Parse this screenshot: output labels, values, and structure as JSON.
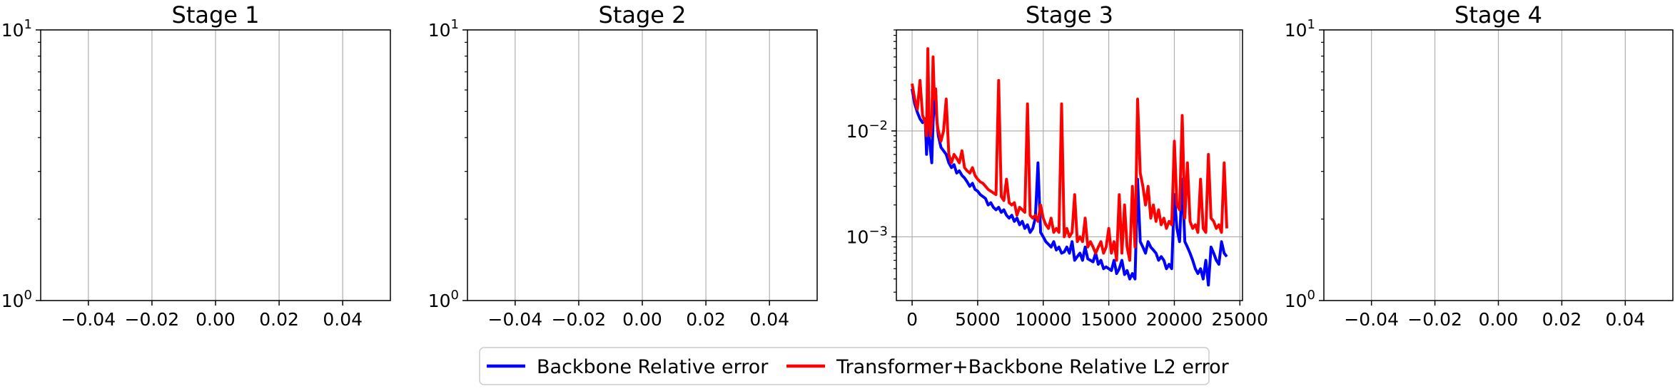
{
  "chart_data": [
    {
      "type": "line",
      "title": "Stage 1",
      "yscale": "log",
      "ylim": [
        1,
        10
      ],
      "xlim": [
        -0.055,
        0.055
      ],
      "xticks": [
        -0.04,
        -0.02,
        0.0,
        0.02,
        0.04
      ],
      "xtick_labels": [
        "−0.04",
        "−0.02",
        "0.00",
        "0.02",
        "0.04"
      ],
      "ytick_labels": [
        {
          "base": "10",
          "exp": "0",
          "value": 1
        },
        {
          "base": "10",
          "exp": "1",
          "value": 10
        }
      ],
      "grid": true,
      "series": []
    },
    {
      "type": "line",
      "title": "Stage 2",
      "yscale": "log",
      "ylim": [
        1,
        10
      ],
      "xlim": [
        -0.055,
        0.055
      ],
      "xticks": [
        -0.04,
        -0.02,
        0.0,
        0.02,
        0.04
      ],
      "xtick_labels": [
        "−0.04",
        "−0.02",
        "0.00",
        "0.02",
        "0.04"
      ],
      "ytick_labels": [
        {
          "base": "10",
          "exp": "0",
          "value": 1
        },
        {
          "base": "10",
          "exp": "1",
          "value": 10
        }
      ],
      "grid": true,
      "series": []
    },
    {
      "type": "line",
      "title": "Stage 3",
      "yscale": "log",
      "ylim": [
        0.00025,
        0.09
      ],
      "xlim": [
        -1200,
        25200
      ],
      "xticks": [
        0,
        5000,
        10000,
        15000,
        20000,
        25000
      ],
      "xtick_labels": [
        "0",
        "5000",
        "10000",
        "15000",
        "20000",
        "25000"
      ],
      "ytick_labels": [
        {
          "base": "10",
          "exp": "−3",
          "value": 0.001
        },
        {
          "base": "10",
          "exp": "−2",
          "value": 0.01
        }
      ],
      "grid": true,
      "series": [
        {
          "name": "Backbone Relative error",
          "color": "#0000ff",
          "x": [
            0,
            200,
            400,
            600,
            800,
            1000,
            1100,
            1200,
            1300,
            1400,
            1500,
            1600,
            1700,
            1800,
            1900,
            2000,
            2200,
            2400,
            2600,
            2800,
            3000,
            3200,
            3400,
            3600,
            3800,
            4000,
            4200,
            4400,
            4600,
            4800,
            5000,
            5200,
            5400,
            5600,
            5800,
            6000,
            6200,
            6400,
            6600,
            6800,
            7000,
            7200,
            7400,
            7600,
            7800,
            8000,
            8200,
            8400,
            8600,
            8800,
            9000,
            9200,
            9400,
            9600,
            9800,
            10000,
            10200,
            10400,
            10600,
            10800,
            11000,
            11200,
            11400,
            11600,
            11800,
            12000,
            12200,
            12400,
            12600,
            12800,
            13000,
            13200,
            13400,
            13600,
            13800,
            14000,
            14200,
            14400,
            14600,
            14800,
            15000,
            15200,
            15400,
            15600,
            15800,
            16000,
            16200,
            16400,
            16600,
            16800,
            17000,
            17200,
            17400,
            17600,
            17800,
            18000,
            18200,
            18400,
            18600,
            18800,
            19000,
            19200,
            19400,
            19600,
            19800,
            20000,
            20200,
            20400,
            20600,
            20800,
            21000,
            21200,
            21400,
            21600,
            21800,
            22000,
            22200,
            22400,
            22600,
            22800,
            23000,
            23200,
            23400,
            23600,
            23800,
            24000
          ],
          "y": [
            0.025,
            0.018,
            0.015,
            0.013,
            0.012,
            0.013,
            0.006,
            0.012,
            0.009,
            0.0065,
            0.005,
            0.012,
            0.02,
            0.018,
            0.012,
            0.009,
            0.007,
            0.0065,
            0.006,
            0.005,
            0.0045,
            0.0048,
            0.004,
            0.0042,
            0.0038,
            0.0036,
            0.0033,
            0.003,
            0.0032,
            0.0028,
            0.0027,
            0.0025,
            0.0024,
            0.0023,
            0.002,
            0.0021,
            0.0019,
            0.0018,
            0.0019,
            0.0017,
            0.0018,
            0.0016,
            0.0015,
            0.0016,
            0.0014,
            0.0015,
            0.0013,
            0.0014,
            0.0012,
            0.0013,
            0.0011,
            0.0012,
            0.0015,
            0.005,
            0.0011,
            0.001,
            0.0009,
            0.00085,
            0.0008,
            0.0009,
            0.00075,
            0.0008,
            0.0007,
            0.00072,
            0.0008,
            0.0007,
            0.0009,
            0.0006,
            0.00065,
            0.0007,
            0.0006,
            0.0008,
            0.00062,
            0.0006,
            0.00058,
            0.0007,
            0.00055,
            0.0006,
            0.0005,
            0.00052,
            0.0005,
            0.00048,
            0.0006,
            0.00045,
            0.0005,
            0.0006,
            0.00044,
            0.00048,
            0.0004,
            0.00045,
            0.0004,
            0.0035,
            0.0009,
            0.0008,
            0.0007,
            0.0009,
            0.0008,
            0.00075,
            0.0007,
            0.0006,
            0.00065,
            0.0006,
            0.0005,
            0.00055,
            0.0005,
            0.0025,
            0.0012,
            0.0009,
            0.0035,
            0.0009,
            0.0008,
            0.0007,
            0.0006,
            0.0005,
            0.00045,
            0.0005,
            0.0004,
            0.0006,
            0.00035,
            0.0008,
            0.0007,
            0.0006,
            0.00055,
            0.0009,
            0.0007,
            0.00065
          ]
        },
        {
          "name": "Transformer+Backbone Relative L2 error",
          "color": "#ff0000",
          "x": [
            0,
            200,
            400,
            600,
            800,
            1000,
            1100,
            1200,
            1300,
            1400,
            1500,
            1600,
            1700,
            1800,
            1900,
            2000,
            2200,
            2400,
            2600,
            2800,
            3000,
            3200,
            3400,
            3600,
            3800,
            4000,
            4200,
            4400,
            4600,
            4800,
            5000,
            5200,
            5400,
            5600,
            5800,
            6000,
            6200,
            6400,
            6600,
            6800,
            7000,
            7200,
            7400,
            7600,
            7800,
            8000,
            8200,
            8400,
            8600,
            8800,
            9000,
            9200,
            9400,
            9600,
            9800,
            10000,
            10200,
            10400,
            10600,
            10800,
            11000,
            11200,
            11400,
            11600,
            11800,
            12000,
            12200,
            12400,
            12600,
            12800,
            13000,
            13200,
            13400,
            13600,
            13800,
            14000,
            14200,
            14400,
            14600,
            14800,
            15000,
            15200,
            15400,
            15600,
            15800,
            16000,
            16200,
            16400,
            16600,
            16800,
            17000,
            17200,
            17400,
            17600,
            17800,
            18000,
            18200,
            18400,
            18600,
            18800,
            19000,
            19200,
            19400,
            19600,
            19800,
            20000,
            20200,
            20400,
            20600,
            20800,
            21000,
            21200,
            21400,
            21600,
            21800,
            22000,
            22200,
            22400,
            22600,
            22800,
            23000,
            23200,
            23400,
            23600,
            23800,
            24000
          ],
          "y": [
            0.028,
            0.02,
            0.016,
            0.03,
            0.014,
            0.012,
            0.009,
            0.06,
            0.012,
            0.009,
            0.012,
            0.05,
            0.02,
            0.025,
            0.012,
            0.01,
            0.008,
            0.01,
            0.02,
            0.006,
            0.005,
            0.006,
            0.0055,
            0.005,
            0.0065,
            0.0045,
            0.0042,
            0.004,
            0.0045,
            0.0038,
            0.0035,
            0.0033,
            0.0032,
            0.003,
            0.0028,
            0.0027,
            0.0026,
            0.0025,
            0.03,
            0.0024,
            0.0022,
            0.0035,
            0.0021,
            0.002,
            0.0021,
            0.0016,
            0.0019,
            0.0018,
            0.0017,
            0.018,
            0.0016,
            0.0015,
            0.0016,
            0.0014,
            0.002,
            0.0015,
            0.0013,
            0.0012,
            0.0015,
            0.0011,
            0.0012,
            0.0011,
            0.018,
            0.001,
            0.0012,
            0.001,
            0.0011,
            0.0025,
            0.0009,
            0.001,
            0.0009,
            0.0015,
            0.0008,
            0.0009,
            0.0008,
            0.0007,
            0.0008,
            0.0009,
            0.0007,
            0.0008,
            0.0012,
            0.0007,
            0.0009,
            0.0006,
            0.0025,
            0.0007,
            0.002,
            0.0008,
            0.0006,
            0.003,
            0.0008,
            0.02,
            0.004,
            0.003,
            0.002,
            0.003,
            0.0015,
            0.002,
            0.0014,
            0.0018,
            0.0013,
            0.0015,
            0.0012,
            0.0014,
            0.0013,
            0.008,
            0.002,
            0.0018,
            0.014,
            0.0015,
            0.005,
            0.0014,
            0.0012,
            0.0013,
            0.0011,
            0.0035,
            0.0012,
            0.0011,
            0.006,
            0.0015,
            0.0014,
            0.0012,
            0.0013,
            0.0011,
            0.005,
            0.0012
          ]
        }
      ]
    },
    {
      "type": "line",
      "title": "Stage 4",
      "yscale": "log",
      "ylim": [
        1,
        10
      ],
      "xlim": [
        -0.055,
        0.055
      ],
      "xticks": [
        -0.04,
        -0.02,
        0.0,
        0.02,
        0.04
      ],
      "xtick_labels": [
        "−0.04",
        "−0.02",
        "0.00",
        "0.02",
        "0.04"
      ],
      "ytick_labels": [
        {
          "base": "10",
          "exp": "0",
          "value": 1
        },
        {
          "base": "10",
          "exp": "1",
          "value": 10
        }
      ],
      "grid": true,
      "series": []
    }
  ],
  "legend": {
    "placement": "bottom-center",
    "entries": [
      {
        "label": "Backbone Relative error",
        "color": "#0000ff"
      },
      {
        "label": "Transformer+Backbone Relative L2 error",
        "color": "#ff0000"
      }
    ]
  }
}
